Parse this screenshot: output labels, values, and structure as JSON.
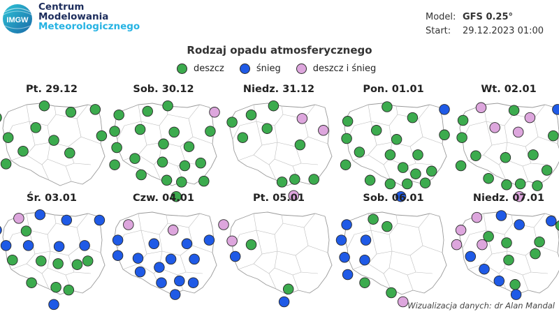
{
  "header": {
    "org_line1": "Centrum",
    "org_line2": "Modelowania",
    "org_line3": "Meteorologicznego",
    "logo_text": "IMGW"
  },
  "model_info": {
    "model_label": "Model:",
    "model_value": "GFS 0.25°",
    "start_label": "Start:",
    "start_value": "29.12.2023 01:00"
  },
  "title": "Rodzaj opadu atmosferycznego",
  "legend": [
    {
      "key": "rain",
      "label": "deszcz",
      "color": "#3cab4e"
    },
    {
      "key": "snow",
      "label": "śnieg",
      "color": "#1f5ae6"
    },
    {
      "key": "mix",
      "label": "deszcz i śnieg",
      "color": "#dda6dd"
    }
  ],
  "credit": "Wizualizacja danych: dr Alan Mandal",
  "colors": {
    "rain": "#3cab4e",
    "snow": "#1f5ae6",
    "mix": "#dda6dd",
    "map_fill": "#ffffff",
    "map_stroke": "#9a9a9a"
  },
  "panels": [
    {
      "title": "Pt. 29.12",
      "stations": [
        [
          "R",
          -0.02,
          0.22
        ],
        [
          "R",
          0.43,
          0.09
        ],
        [
          "R",
          0.68,
          0.16
        ],
        [
          "R",
          0.91,
          0.13
        ],
        [
          "R",
          0.09,
          0.44
        ],
        [
          "R",
          0.35,
          0.33
        ],
        [
          "R",
          0.52,
          0.47
        ],
        [
          "R",
          0.97,
          0.42
        ],
        [
          "R",
          0.23,
          0.59
        ],
        [
          "R",
          0.67,
          0.61
        ],
        [
          "R",
          0.07,
          0.73
        ]
      ]
    },
    {
      "title": "Sob. 30.12",
      "stations": [
        [
          "R",
          0.08,
          0.19
        ],
        [
          "R",
          0.35,
          0.15
        ],
        [
          "R",
          0.54,
          0.09
        ],
        [
          "M",
          0.98,
          0.16
        ],
        [
          "R",
          0.04,
          0.37
        ],
        [
          "R",
          0.28,
          0.35
        ],
        [
          "R",
          0.6,
          0.38
        ],
        [
          "R",
          0.94,
          0.37
        ],
        [
          "R",
          0.06,
          0.55
        ],
        [
          "R",
          0.5,
          0.51
        ],
        [
          "R",
          0.74,
          0.54
        ],
        [
          "R",
          0.04,
          0.74
        ],
        [
          "R",
          0.23,
          0.67
        ],
        [
          "R",
          0.49,
          0.71
        ],
        [
          "R",
          0.7,
          0.75
        ],
        [
          "R",
          0.85,
          0.72
        ],
        [
          "R",
          0.29,
          0.85
        ],
        [
          "R",
          0.53,
          0.91
        ],
        [
          "R",
          0.67,
          0.93
        ],
        [
          "R",
          0.88,
          0.92
        ],
        [
          "R",
          0.62,
          1.09
        ]
      ]
    },
    {
      "title": "Niedz. 31.12",
      "stations": [
        [
          "R",
          0.06,
          0.27
        ],
        [
          "R",
          0.24,
          0.19
        ],
        [
          "R",
          0.45,
          0.09
        ],
        [
          "M",
          0.72,
          0.23
        ],
        [
          "R",
          0.39,
          0.34
        ],
        [
          "M",
          0.92,
          0.36
        ],
        [
          "R",
          0.16,
          0.44
        ],
        [
          "R",
          0.7,
          0.52
        ],
        [
          "R",
          0.53,
          0.93
        ],
        [
          "R",
          0.65,
          0.9
        ],
        [
          "R",
          0.83,
          0.9
        ],
        [
          "M",
          0.64,
          1.08
        ]
      ]
    },
    {
      "title": "Pon. 01.01",
      "stations": [
        [
          "R",
          0.07,
          0.26
        ],
        [
          "R",
          0.44,
          0.1
        ],
        [
          "R",
          0.68,
          0.22
        ],
        [
          "S",
          0.98,
          0.13
        ],
        [
          "R",
          0.06,
          0.45
        ],
        [
          "R",
          0.34,
          0.36
        ],
        [
          "R",
          0.53,
          0.46
        ],
        [
          "R",
          0.98,
          0.41
        ],
        [
          "R",
          0.18,
          0.6
        ],
        [
          "R",
          0.47,
          0.63
        ],
        [
          "R",
          0.73,
          0.63
        ],
        [
          "R",
          0.05,
          0.74
        ],
        [
          "R",
          0.59,
          0.77
        ],
        [
          "R",
          0.71,
          0.84
        ],
        [
          "R",
          0.86,
          0.81
        ],
        [
          "R",
          0.28,
          0.91
        ],
        [
          "R",
          0.47,
          0.95
        ],
        [
          "R",
          0.63,
          0.95
        ],
        [
          "R",
          0.8,
          0.94
        ],
        [
          "S",
          0.57,
          1.09
        ]
      ]
    },
    {
      "title": "Wt. 02.01",
      "stations": [
        [
          "R",
          0.07,
          0.25
        ],
        [
          "M",
          0.24,
          0.11
        ],
        [
          "R",
          0.55,
          0.14
        ],
        [
          "M",
          0.7,
          0.22
        ],
        [
          "S",
          0.96,
          0.13
        ],
        [
          "R",
          0.06,
          0.44
        ],
        [
          "M",
          0.37,
          0.33
        ],
        [
          "M",
          0.59,
          0.38
        ],
        [
          "R",
          0.92,
          0.42
        ],
        [
          "R",
          0.19,
          0.64
        ],
        [
          "R",
          0.47,
          0.66
        ],
        [
          "R",
          0.73,
          0.63
        ],
        [
          "R",
          0.05,
          0.75
        ],
        [
          "R",
          0.86,
          0.8
        ],
        [
          "R",
          0.31,
          0.89
        ],
        [
          "R",
          0.48,
          0.96
        ],
        [
          "R",
          0.61,
          0.95
        ],
        [
          "R",
          0.77,
          0.97
        ],
        [
          "M",
          0.6,
          1.09
        ]
      ]
    },
    {
      "title": "Śr. 03.01",
      "stations": [
        [
          "M",
          0.19,
          0.13
        ],
        [
          "S",
          0.39,
          0.09
        ],
        [
          "S",
          0.64,
          0.15
        ],
        [
          "S",
          0.95,
          0.15
        ],
        [
          "S",
          -0.02,
          0.26
        ],
        [
          "R",
          0.26,
          0.27
        ],
        [
          "S",
          0.07,
          0.43
        ],
        [
          "S",
          0.28,
          0.43
        ],
        [
          "S",
          0.57,
          0.44
        ],
        [
          "S",
          0.81,
          0.43
        ],
        [
          "R",
          0.13,
          0.59
        ],
        [
          "R",
          0.4,
          0.6
        ],
        [
          "R",
          0.56,
          0.63
        ],
        [
          "R",
          0.74,
          0.64
        ],
        [
          "R",
          0.84,
          0.6
        ],
        [
          "R",
          0.31,
          0.84
        ],
        [
          "R",
          0.54,
          0.89
        ],
        [
          "R",
          0.66,
          0.92
        ],
        [
          "S",
          0.52,
          1.08
        ]
      ]
    },
    {
      "title": "Czw. 04.01",
      "stations": [
        [
          "M",
          0.17,
          0.2
        ],
        [
          "M",
          0.59,
          0.26
        ],
        [
          "S",
          0.07,
          0.37
        ],
        [
          "S",
          0.41,
          0.41
        ],
        [
          "S",
          0.72,
          0.41
        ],
        [
          "S",
          0.93,
          0.37
        ],
        [
          "S",
          0.07,
          0.54
        ],
        [
          "S",
          0.26,
          0.57
        ],
        [
          "S",
          0.57,
          0.58
        ],
        [
          "S",
          0.79,
          0.58
        ],
        [
          "S",
          0.46,
          0.67
        ],
        [
          "S",
          0.28,
          0.72
        ],
        [
          "S",
          0.48,
          0.84
        ],
        [
          "S",
          0.65,
          0.82
        ],
        [
          "S",
          0.78,
          0.84
        ],
        [
          "S",
          0.61,
          0.97
        ]
      ]
    },
    {
      "title": "Pt. 05.01",
      "stations": [
        [
          "M",
          -0.02,
          0.2
        ],
        [
          "M",
          0.06,
          0.38
        ],
        [
          "R",
          0.24,
          0.42
        ],
        [
          "S",
          0.09,
          0.55
        ],
        [
          "R",
          0.59,
          0.91
        ],
        [
          "S",
          0.55,
          1.05
        ]
      ]
    },
    {
      "title": "Sob. 06.01",
      "stations": [
        [
          "S",
          0.06,
          0.2
        ],
        [
          "R",
          0.31,
          0.14
        ],
        [
          "R",
          0.44,
          0.22
        ],
        [
          "S",
          0.01,
          0.37
        ],
        [
          "S",
          0.24,
          0.37
        ],
        [
          "S",
          0.04,
          0.56
        ],
        [
          "S",
          0.23,
          0.59
        ],
        [
          "S",
          0.07,
          0.75
        ],
        [
          "R",
          0.23,
          0.84
        ],
        [
          "R",
          0.48,
          0.95
        ],
        [
          "M",
          0.59,
          1.05
        ]
      ]
    },
    {
      "title": "Niedz. 07.01",
      "stations": [
        [
          "M",
          0.2,
          0.12
        ],
        [
          "S",
          0.43,
          0.1
        ],
        [
          "S",
          0.6,
          0.2
        ],
        [
          "S",
          0.9,
          0.16
        ],
        [
          "R",
          0.99,
          0.21
        ],
        [
          "M",
          0.05,
          0.26
        ],
        [
          "R",
          0.31,
          0.33
        ],
        [
          "M",
          0.01,
          0.42
        ],
        [
          "M",
          0.25,
          0.42
        ],
        [
          "R",
          0.48,
          0.4
        ],
        [
          "R",
          0.79,
          0.39
        ],
        [
          "R",
          0.75,
          0.52
        ],
        [
          "S",
          0.14,
          0.55
        ],
        [
          "R",
          0.5,
          0.59
        ],
        [
          "S",
          0.27,
          0.69
        ],
        [
          "S",
          0.41,
          0.82
        ],
        [
          "R",
          0.56,
          0.86
        ],
        [
          "S",
          0.57,
          0.97
        ]
      ]
    }
  ]
}
